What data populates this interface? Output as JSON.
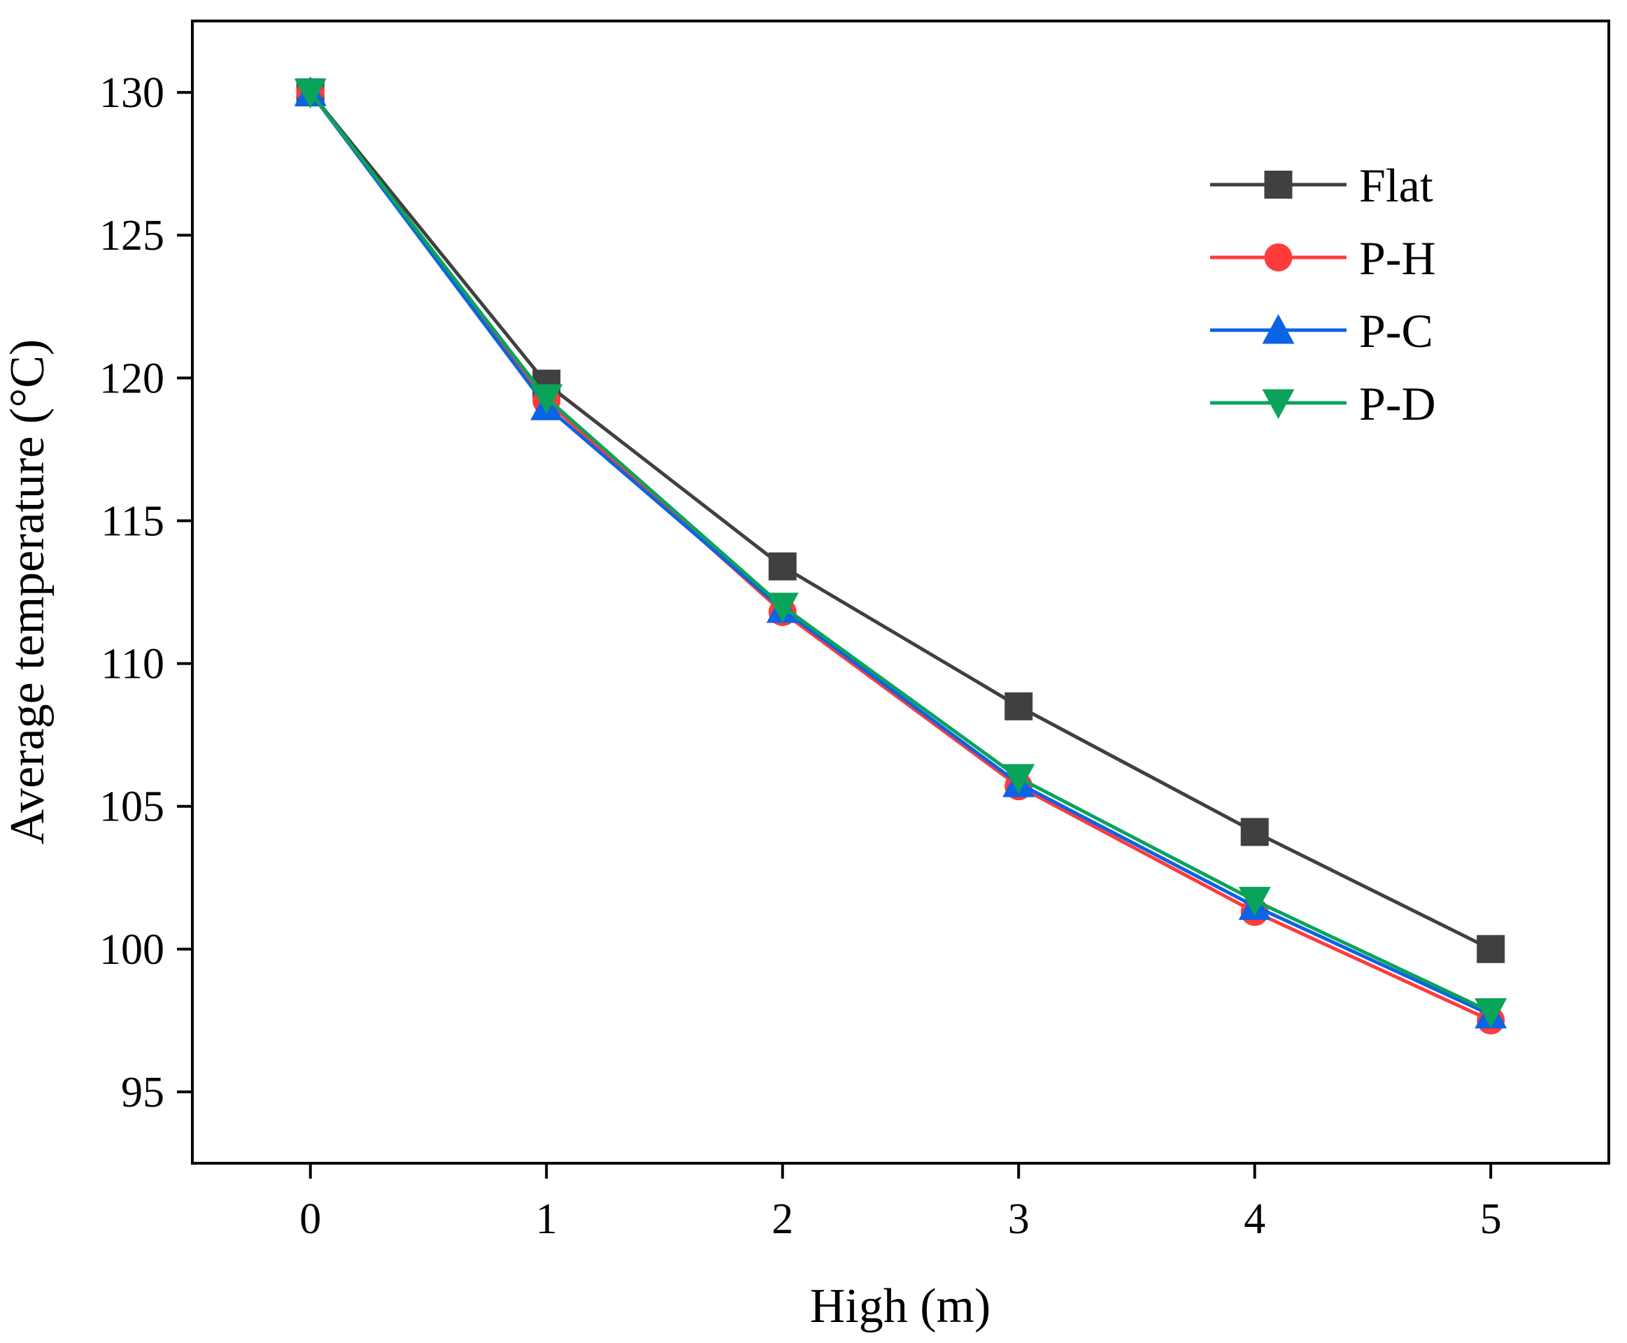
{
  "chart_data": {
    "type": "line",
    "title": "",
    "xlabel": "High (m)",
    "ylabel": "Average temperature (°C)",
    "x": [
      0,
      1,
      2,
      3,
      4,
      5
    ],
    "xlim": [
      -0.5,
      5.5
    ],
    "ylim": [
      92.5,
      132.5
    ],
    "xticks": [
      0,
      1,
      2,
      3,
      4,
      5
    ],
    "yticks": [
      95,
      100,
      105,
      110,
      115,
      120,
      125,
      130
    ],
    "grid": false,
    "legend_position": "top-right",
    "series": [
      {
        "name": "Flat",
        "marker": "square",
        "color": "#404040",
        "values": [
          130.0,
          119.8,
          113.4,
          108.5,
          104.1,
          100.0
        ]
      },
      {
        "name": "P-H",
        "marker": "circle",
        "color": "#ff3b3b",
        "values": [
          130.0,
          119.2,
          111.8,
          105.7,
          101.3,
          97.5
        ]
      },
      {
        "name": "P-C",
        "marker": "triangle-up",
        "color": "#0b63e5",
        "values": [
          130.0,
          119.0,
          111.9,
          105.8,
          101.5,
          97.7
        ]
      },
      {
        "name": "P-D",
        "marker": "triangle-down",
        "color": "#0aa35a",
        "values": [
          130.0,
          119.3,
          112.0,
          106.0,
          101.7,
          97.8
        ]
      }
    ]
  }
}
